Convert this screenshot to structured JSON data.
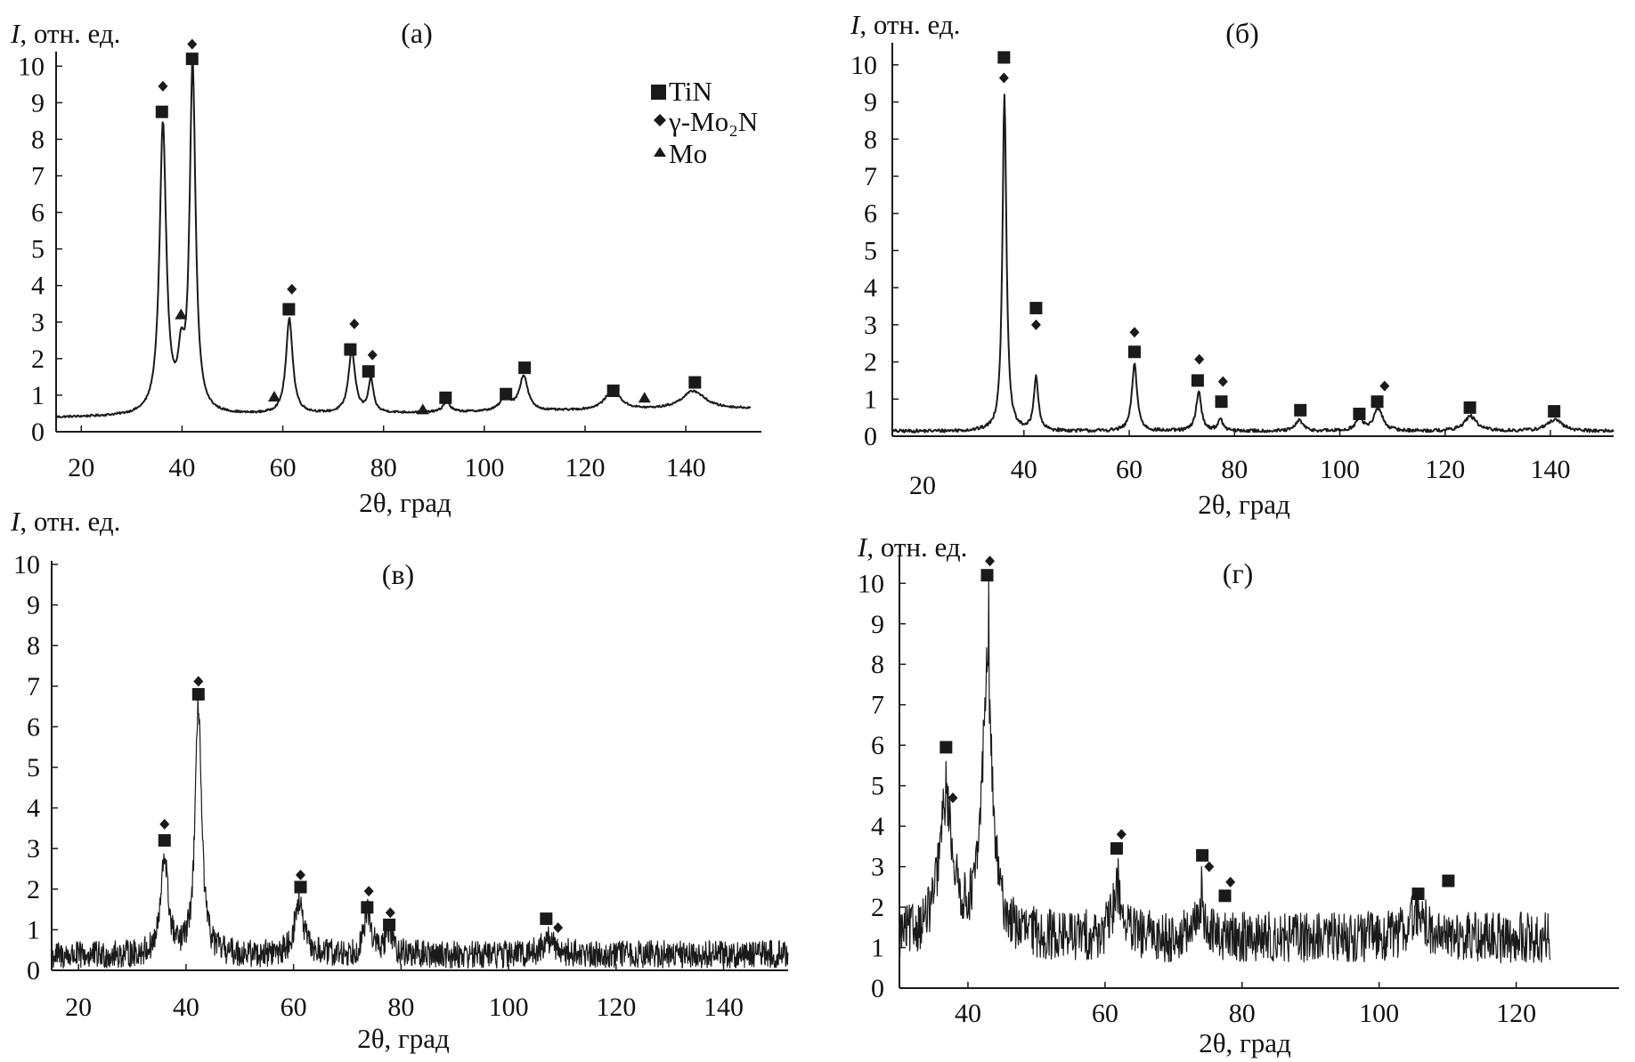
{
  "figure": {
    "colors": {
      "ink": "#1a1a1a",
      "background": "#ffffff"
    },
    "legend": {
      "location": "top-right of panel (а)",
      "items": [
        {
          "marker": "square",
          "label": "TiN"
        },
        {
          "marker": "diamond",
          "label": "γ-Mo₂N"
        },
        {
          "marker": "triangle",
          "label": "Mo"
        }
      ]
    }
  },
  "chart_data": [
    {
      "type": "line",
      "panel": "(а)",
      "ylabel_italic": "I",
      "ylabel_rest": ", отн. ед.",
      "xlabel": "2θ, град",
      "xlim": [
        15,
        155
      ],
      "ylim": [
        0,
        10.3
      ],
      "xticks": [
        20,
        40,
        60,
        80,
        100,
        120,
        140
      ],
      "yticks": [
        0,
        1,
        2,
        3,
        4,
        5,
        6,
        7,
        8,
        9,
        10
      ],
      "grid": false,
      "baseline": 0.38,
      "end_level": 0.62,
      "noise": 0.03,
      "peaks": [
        {
          "x": 36.2,
          "h": 7.9,
          "w": 0.8
        },
        {
          "x": 39.8,
          "h": 1.2,
          "w": 0.7
        },
        {
          "x": 42.1,
          "h": 9.5,
          "w": 0.7
        },
        {
          "x": 61.3,
          "h": 2.6,
          "w": 0.8
        },
        {
          "x": 73.7,
          "h": 1.7,
          "w": 0.8
        },
        {
          "x": 77.5,
          "h": 0.9,
          "w": 0.6
        },
        {
          "x": 92.5,
          "h": 0.3,
          "w": 0.8
        },
        {
          "x": 104.2,
          "h": 0.35,
          "w": 1.3
        },
        {
          "x": 107.8,
          "h": 0.95,
          "w": 1.0
        },
        {
          "x": 125.5,
          "h": 0.55,
          "w": 1.8
        },
        {
          "x": 141.5,
          "h": 0.5,
          "w": 2.8
        }
      ],
      "markers": [
        {
          "type": "square",
          "x": 36.0,
          "y": 8.75
        },
        {
          "type": "diamond",
          "x": 36.2,
          "y": 9.45
        },
        {
          "type": "triangle",
          "x": 39.8,
          "y": 3.2
        },
        {
          "type": "square",
          "x": 42.0,
          "y": 10.2
        },
        {
          "type": "diamond",
          "x": 42.0,
          "y": 10.6
        },
        {
          "type": "triangle",
          "x": 58.3,
          "y": 0.95
        },
        {
          "type": "square",
          "x": 61.2,
          "y": 3.35
        },
        {
          "type": "diamond",
          "x": 61.8,
          "y": 3.9
        },
        {
          "type": "square",
          "x": 73.4,
          "y": 2.25
        },
        {
          "type": "diamond",
          "x": 74.2,
          "y": 2.95
        },
        {
          "type": "square",
          "x": 77.0,
          "y": 1.65
        },
        {
          "type": "diamond",
          "x": 77.8,
          "y": 2.1
        },
        {
          "type": "triangle",
          "x": 87.8,
          "y": 0.6
        },
        {
          "type": "square",
          "x": 92.3,
          "y": 0.93
        },
        {
          "type": "square",
          "x": 104.3,
          "y": 1.03
        },
        {
          "type": "square",
          "x": 108.0,
          "y": 1.75
        },
        {
          "type": "square",
          "x": 125.6,
          "y": 1.12
        },
        {
          "type": "triangle",
          "x": 131.8,
          "y": 0.92
        },
        {
          "type": "square",
          "x": 141.8,
          "y": 1.35
        }
      ]
    },
    {
      "type": "line",
      "panel": "(б)",
      "ylabel_italic": "I",
      "ylabel_rest": ", отн. ед.",
      "xlabel": "2θ, град",
      "xlim": [
        15,
        152
      ],
      "ylim": [
        0,
        10.5
      ],
      "xticks": [
        40,
        60,
        80,
        100,
        120,
        140
      ],
      "extra_x_label": "20",
      "yticks": [
        0,
        1,
        2,
        3,
        4,
        5,
        6,
        7,
        8,
        9,
        10
      ],
      "grid": false,
      "baseline": 0.12,
      "end_level": 0.12,
      "noise": 0.05,
      "peaks": [
        {
          "x": 36.3,
          "h": 9.1,
          "w": 0.45
        },
        {
          "x": 42.3,
          "h": 1.45,
          "w": 0.5
        },
        {
          "x": 61.0,
          "h": 1.8,
          "w": 0.6
        },
        {
          "x": 73.2,
          "h": 1.05,
          "w": 0.6
        },
        {
          "x": 77.3,
          "h": 0.3,
          "w": 0.6
        },
        {
          "x": 92.3,
          "h": 0.3,
          "w": 0.8
        },
        {
          "x": 103.7,
          "h": 0.3,
          "w": 0.9
        },
        {
          "x": 107.3,
          "h": 0.6,
          "w": 1.0
        },
        {
          "x": 124.8,
          "h": 0.4,
          "w": 1.4
        },
        {
          "x": 140.8,
          "h": 0.3,
          "w": 1.8
        }
      ],
      "markers": [
        {
          "type": "square",
          "x": 36.2,
          "y": 10.2
        },
        {
          "type": "diamond",
          "x": 36.2,
          "y": 9.65
        },
        {
          "type": "square",
          "x": 42.3,
          "y": 3.45
        },
        {
          "type": "diamond",
          "x": 42.3,
          "y": 3.0
        },
        {
          "type": "diamond",
          "x": 61.0,
          "y": 2.8
        },
        {
          "type": "square",
          "x": 61.0,
          "y": 2.27
        },
        {
          "type": "diamond",
          "x": 73.3,
          "y": 2.07
        },
        {
          "type": "square",
          "x": 73.0,
          "y": 1.5
        },
        {
          "type": "diamond",
          "x": 77.8,
          "y": 1.47
        },
        {
          "type": "square",
          "x": 77.5,
          "y": 0.93
        },
        {
          "type": "square",
          "x": 92.5,
          "y": 0.7
        },
        {
          "type": "square",
          "x": 103.7,
          "y": 0.6
        },
        {
          "type": "square",
          "x": 107.1,
          "y": 0.93
        },
        {
          "type": "diamond",
          "x": 108.5,
          "y": 1.35
        },
        {
          "type": "square",
          "x": 124.7,
          "y": 0.77
        },
        {
          "type": "square",
          "x": 140.7,
          "y": 0.67
        }
      ]
    },
    {
      "type": "line",
      "panel": "(в)",
      "ylabel_italic": "I",
      "ylabel_rest": ", отн. ед.",
      "xlabel": "2θ, град",
      "xlim": [
        15,
        152
      ],
      "ylim": [
        0,
        10
      ],
      "xticks": [
        20,
        40,
        60,
        80,
        100,
        120,
        140
      ],
      "yticks": [
        0,
        1,
        2,
        3,
        4,
        5,
        6,
        7,
        8,
        9,
        10
      ],
      "grid": false,
      "baseline": 0.25,
      "end_level": 0.3,
      "noise": 0.38,
      "peaks": [
        {
          "x": 36.0,
          "h": 2.4,
          "w": 0.8
        },
        {
          "x": 42.3,
          "h": 6.2,
          "w": 0.7
        },
        {
          "x": 61.0,
          "h": 1.3,
          "w": 1.0
        },
        {
          "x": 73.8,
          "h": 1.05,
          "w": 0.8
        },
        {
          "x": 77.8,
          "h": 0.6,
          "w": 0.8
        },
        {
          "x": 107.5,
          "h": 0.35,
          "w": 1.5
        }
      ],
      "markers": [
        {
          "type": "diamond",
          "x": 36.0,
          "y": 3.6
        },
        {
          "type": "square",
          "x": 36.0,
          "y": 3.2
        },
        {
          "type": "diamond",
          "x": 42.3,
          "y": 7.12
        },
        {
          "type": "square",
          "x": 42.3,
          "y": 6.8
        },
        {
          "type": "diamond",
          "x": 61.3,
          "y": 2.35
        },
        {
          "type": "square",
          "x": 61.3,
          "y": 2.05
        },
        {
          "type": "diamond",
          "x": 74.0,
          "y": 1.95
        },
        {
          "type": "square",
          "x": 73.7,
          "y": 1.55
        },
        {
          "type": "diamond",
          "x": 78.0,
          "y": 1.42
        },
        {
          "type": "square",
          "x": 77.8,
          "y": 1.12
        },
        {
          "type": "square",
          "x": 107.0,
          "y": 1.27
        },
        {
          "type": "diamond",
          "x": 109.2,
          "y": 1.05
        }
      ]
    },
    {
      "type": "line",
      "panel": "(г)",
      "ylabel_italic": "I",
      "ylabel_rest": ", отн. ед.",
      "xlabel": "2θ, град",
      "xlim": [
        30,
        135
      ],
      "ylim": [
        0,
        10.6
      ],
      "xticks": [
        40,
        60,
        80,
        100,
        120
      ],
      "yticks": [
        0,
        1,
        2,
        3,
        4,
        5,
        6,
        7,
        8,
        9,
        10
      ],
      "grid": false,
      "baseline": 1.05,
      "end_level": 1.05,
      "noise": 0.7,
      "data_xmax": 125,
      "peaks": [
        {
          "x": 36.8,
          "h": 3.3,
          "w": 1.2
        },
        {
          "x": 42.8,
          "h": 6.5,
          "w": 0.9
        },
        {
          "x": 61.8,
          "h": 1.2,
          "w": 0.8
        },
        {
          "x": 74.0,
          "h": 0.9,
          "w": 0.6
        },
        {
          "x": 105.5,
          "h": 0.6,
          "w": 1.5
        }
      ],
      "spikes": [
        {
          "x": 43.0,
          "y": 10.05
        },
        {
          "x": 36.8,
          "y": 5.6
        },
        {
          "x": 61.9,
          "y": 3.2
        },
        {
          "x": 74.1,
          "y": 3.0
        }
      ],
      "markers": [
        {
          "type": "square",
          "x": 36.8,
          "y": 5.95
        },
        {
          "type": "diamond",
          "x": 37.8,
          "y": 4.7
        },
        {
          "type": "square",
          "x": 42.8,
          "y": 10.2
        },
        {
          "type": "diamond",
          "x": 43.2,
          "y": 10.55
        },
        {
          "type": "square",
          "x": 61.7,
          "y": 3.45
        },
        {
          "type": "diamond",
          "x": 62.4,
          "y": 3.8
        },
        {
          "type": "square",
          "x": 74.2,
          "y": 3.28
        },
        {
          "type": "diamond",
          "x": 75.2,
          "y": 3.0
        },
        {
          "type": "square",
          "x": 77.5,
          "y": 2.28
        },
        {
          "type": "diamond",
          "x": 78.3,
          "y": 2.62
        },
        {
          "type": "square",
          "x": 105.7,
          "y": 2.33
        },
        {
          "type": "square",
          "x": 110.1,
          "y": 2.65
        }
      ]
    }
  ]
}
